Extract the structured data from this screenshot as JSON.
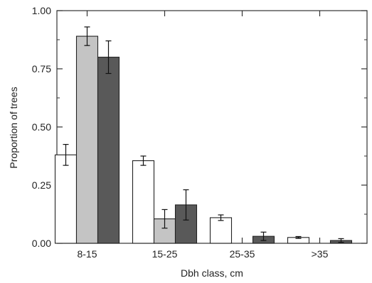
{
  "chart_data": {
    "type": "bar",
    "categories": [
      "8-15",
      "15-25",
      "25-35",
      ">35"
    ],
    "series": [
      {
        "values": [
          0.38,
          0.355,
          0.11,
          0.025
        ],
        "errors": [
          0.045,
          0.02,
          0.012,
          0.004
        ],
        "color": "#ffffff"
      },
      {
        "values": [
          0.89,
          0.105,
          0.0,
          0.0
        ],
        "errors": [
          0.04,
          0.04,
          0.0,
          0.0
        ],
        "color": "#c4c4c4"
      },
      {
        "values": [
          0.8,
          0.165,
          0.03,
          0.012
        ],
        "errors": [
          0.07,
          0.065,
          0.018,
          0.008
        ],
        "color": "#595959"
      }
    ],
    "xlabel": "Dbh class, cm",
    "ylabel": "Proportion of trees",
    "ylim": [
      0,
      1
    ],
    "yticks": [
      "0.00",
      "0.25",
      "0.50",
      "0.75",
      "1.00"
    ],
    "grid": false,
    "legend": "none"
  }
}
